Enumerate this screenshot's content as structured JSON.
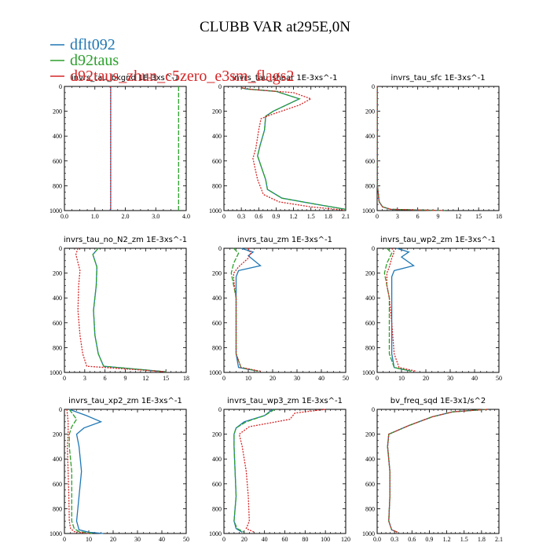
{
  "figure": {
    "title": "CLUBB VAR at295E,0N"
  },
  "legend": [
    {
      "label": "dflt092",
      "color": "#1f77b4"
    },
    {
      "label": "d92taus",
      "color": "#2ca02c"
    },
    {
      "label": "d92taus_zhun_c5zero_e3sm_flags2",
      "color": "#d62728"
    }
  ],
  "chart_data": [
    {
      "type": "line",
      "title": "invrs_tau_bkgnd   1E-3xs^-1",
      "xlim": [
        0,
        4
      ],
      "xticks": [
        "0.0",
        "1.0",
        "2.0",
        "3.0",
        "4.0"
      ],
      "ylim": [
        1000,
        0
      ],
      "yticks": [
        "0",
        "200",
        "400",
        "600",
        "800",
        "1000"
      ],
      "series": [
        {
          "name": "dflt092",
          "x": [
            1.52,
            1.52
          ],
          "y": [
            0,
            1000
          ]
        },
        {
          "name": "d92taus",
          "x": [
            3.75,
            3.75
          ],
          "y": [
            0,
            1000
          ]
        },
        {
          "name": "d92taus_zhun_c5zero_e3sm_flags2",
          "x": [
            1.52,
            1.52
          ],
          "y": [
            0,
            1000
          ]
        }
      ]
    },
    {
      "type": "line",
      "title": "invrs_tau_shear   1E-3xs^-1",
      "xlim": [
        0,
        2.1
      ],
      "xticks": [
        "0",
        "0.3",
        "0.6",
        "0.9",
        "1.2",
        "1.5",
        "1.8",
        "2.1"
      ],
      "ylim": [
        1000,
        0
      ],
      "yticks": [
        "0",
        "200",
        "400",
        "600",
        "800",
        "1000"
      ],
      "series": [
        {
          "name": "dflt092",
          "x": [
            0.3,
            0.38,
            0.9,
            1.3,
            0.85,
            0.72,
            0.7,
            0.62,
            0.58,
            0.72,
            0.75,
            1.0,
            1.6,
            2.1
          ],
          "y": [
            10,
            20,
            40,
            100,
            200,
            240,
            350,
            480,
            560,
            750,
            830,
            900,
            950,
            990
          ]
        },
        {
          "name": "d92taus",
          "x": [
            0.3,
            0.38,
            0.9,
            1.3,
            0.85,
            0.72,
            0.7,
            0.62,
            0.58,
            0.72,
            0.75,
            1.0,
            1.6,
            2.1
          ],
          "y": [
            10,
            20,
            40,
            100,
            200,
            240,
            350,
            480,
            560,
            750,
            830,
            900,
            950,
            990
          ]
        },
        {
          "name": "d92taus_zhun_c5zero_e3sm_flags2",
          "x": [
            0.3,
            0.5,
            1.2,
            1.5,
            1.3,
            0.8,
            0.64,
            0.6,
            0.55,
            0.5,
            0.58,
            0.68,
            0.95,
            1.5,
            2.05
          ],
          "y": [
            10,
            25,
            50,
            100,
            150,
            230,
            260,
            350,
            500,
            580,
            750,
            870,
            930,
            970,
            995
          ]
        }
      ]
    },
    {
      "type": "line",
      "title": "invrs_tau_sfc   1E-3xs^-1",
      "xlim": [
        0,
        18
      ],
      "xticks": [
        "0",
        "3",
        "6",
        "9",
        "12",
        "15",
        "18"
      ],
      "ylim": [
        1000,
        0
      ],
      "yticks": [
        "0",
        "200",
        "400",
        "600",
        "800",
        "1000"
      ],
      "series": [
        {
          "name": "dflt092",
          "x": [
            0.02,
            0.05,
            0.3,
            0.8,
            2.0,
            10.0
          ],
          "y": [
            0,
            800,
            930,
            970,
            990,
            1000
          ]
        },
        {
          "name": "d92taus",
          "x": [
            0.02,
            0.05,
            0.3,
            0.8,
            2.0,
            10.0
          ],
          "y": [
            0,
            800,
            930,
            970,
            990,
            1000
          ]
        },
        {
          "name": "d92taus_zhun_c5zero_e3sm_flags2",
          "x": [
            0.02,
            0.05,
            0.3,
            0.8,
            2.0,
            10.0
          ],
          "y": [
            0,
            800,
            930,
            970,
            990,
            1000
          ]
        }
      ]
    },
    {
      "type": "line",
      "title": "invrs_tau_no_N2_zm   1E-3xs^-1",
      "xlim": [
        0,
        18
      ],
      "xticks": [
        "0",
        "3",
        "6",
        "9",
        "12",
        "15",
        "18"
      ],
      "ylim": [
        1000,
        0
      ],
      "yticks": [
        "0",
        "200",
        "400",
        "600",
        "800",
        "1000"
      ],
      "series": [
        {
          "name": "dflt092",
          "x": [
            5.0,
            4.2,
            4.8,
            4.7,
            4.3,
            4.5,
            5.0,
            5.8,
            15.0
          ],
          "y": [
            0,
            50,
            150,
            300,
            500,
            700,
            850,
            950,
            995
          ]
        },
        {
          "name": "d92taus",
          "x": [
            5.0,
            4.2,
            4.8,
            4.7,
            4.3,
            4.5,
            5.0,
            5.8,
            15.0
          ],
          "y": [
            0,
            50,
            150,
            300,
            500,
            700,
            850,
            950,
            995
          ]
        },
        {
          "name": "d92taus_zhun_c5zero_e3sm_flags2",
          "x": [
            2.0,
            1.7,
            2.3,
            2.1,
            2.0,
            2.3,
            2.7,
            3.3,
            15.0
          ],
          "y": [
            0,
            50,
            180,
            300,
            500,
            700,
            850,
            950,
            995
          ]
        }
      ]
    },
    {
      "type": "line",
      "title": "invrs_tau_zm   1E-3xs^-1",
      "xlim": [
        0,
        50
      ],
      "xticks": [
        "0",
        "10",
        "20",
        "30",
        "40",
        "50"
      ],
      "ylim": [
        1000,
        0
      ],
      "yticks": [
        "0",
        "200",
        "400",
        "600",
        "800",
        "1000"
      ],
      "series": [
        {
          "name": "dflt092",
          "x": [
            7,
            12,
            10,
            15,
            6,
            5,
            5,
            5,
            5,
            6,
            14
          ],
          "y": [
            0,
            30,
            60,
            140,
            180,
            230,
            400,
            600,
            850,
            960,
            990
          ]
        },
        {
          "name": "d92taus",
          "x": [
            4,
            6,
            4,
            3,
            4,
            5,
            5,
            5,
            7,
            14
          ],
          "y": [
            0,
            40,
            120,
            200,
            300,
            400,
            600,
            850,
            960,
            990
          ]
        },
        {
          "name": "d92taus_zhun_c5zero_e3sm_flags2",
          "x": [
            10,
            11,
            10,
            6,
            4,
            4,
            5,
            5,
            5,
            7,
            15
          ],
          "y": [
            0,
            40,
            80,
            150,
            200,
            250,
            400,
            600,
            850,
            960,
            990
          ]
        }
      ]
    },
    {
      "type": "line",
      "title": "invrs_tau_wp2_zm   1E-3xs^-1",
      "xlim": [
        0,
        50
      ],
      "xticks": [
        "0",
        "10",
        "20",
        "30",
        "40",
        "50"
      ],
      "ylim": [
        1000,
        0
      ],
      "yticks": [
        "0",
        "200",
        "400",
        "600",
        "800",
        "1000"
      ],
      "series": [
        {
          "name": "dflt092",
          "x": [
            8,
            13,
            10,
            15,
            7,
            6,
            6,
            6,
            6,
            7,
            14
          ],
          "y": [
            0,
            30,
            70,
            140,
            180,
            230,
            400,
            600,
            850,
            960,
            990
          ]
        },
        {
          "name": "d92taus",
          "x": [
            4,
            6,
            4,
            3,
            4,
            5,
            5,
            5,
            7,
            14
          ],
          "y": [
            0,
            40,
            120,
            200,
            300,
            400,
            600,
            850,
            960,
            990
          ]
        },
        {
          "name": "d92taus_zhun_c5zero_e3sm_flags2",
          "x": [
            6,
            7,
            6,
            5,
            4,
            4,
            5,
            6,
            7,
            9,
            16
          ],
          "y": [
            0,
            30,
            80,
            150,
            200,
            300,
            400,
            600,
            850,
            960,
            990
          ]
        }
      ]
    },
    {
      "type": "line",
      "title": "invrs_tau_xp2_zm   1E-3xs^-1",
      "xlim": [
        0,
        50
      ],
      "xticks": [
        "0",
        "10",
        "20",
        "30",
        "40",
        "50"
      ],
      "ylim": [
        1000,
        0
      ],
      "yticks": [
        "0",
        "200",
        "400",
        "600",
        "800",
        "1000"
      ],
      "series": [
        {
          "name": "dflt092",
          "x": [
            2,
            9,
            15,
            8,
            5,
            6,
            7,
            6,
            5,
            6,
            10,
            16
          ],
          "y": [
            0,
            50,
            100,
            150,
            200,
            300,
            500,
            700,
            900,
            970,
            990,
            1000
          ]
        },
        {
          "name": "d92taus",
          "x": [
            2,
            5,
            3,
            2,
            2,
            3,
            3,
            3,
            4,
            6,
            12
          ],
          "y": [
            0,
            80,
            140,
            200,
            300,
            500,
            700,
            900,
            960,
            985,
            1000
          ]
        },
        {
          "name": "d92taus_zhun_c5zero_e3sm_flags2",
          "x": [
            1,
            1.5,
            1.5,
            1.2,
            1.5,
            1.8,
            2,
            2.5,
            4,
            10
          ],
          "y": [
            0,
            100,
            200,
            300,
            500,
            700,
            900,
            960,
            985,
            1000
          ]
        }
      ]
    },
    {
      "type": "line",
      "title": "invrs_tau_wp3_zm   1E-3xs^-1",
      "xlim": [
        0,
        120
      ],
      "xticks": [
        "0",
        "20",
        "40",
        "60",
        "80",
        "100",
        "120"
      ],
      "ylim": [
        1000,
        0
      ],
      "yticks": [
        "0",
        "200",
        "400",
        "600",
        "800",
        "1000"
      ],
      "series": [
        {
          "name": "dflt092",
          "x": [
            48,
            40,
            20,
            12,
            10,
            10,
            11,
            12,
            10,
            12,
            18
          ],
          "y": [
            0,
            50,
            100,
            150,
            200,
            300,
            500,
            700,
            900,
            960,
            990
          ]
        },
        {
          "name": "d92taus",
          "x": [
            50,
            40,
            22,
            12,
            10,
            10,
            11,
            12,
            10,
            13,
            20
          ],
          "y": [
            0,
            50,
            100,
            150,
            200,
            300,
            500,
            700,
            900,
            960,
            990
          ]
        },
        {
          "name": "d92taus_zhun_c5zero_e3sm_flags2",
          "x": [
            100,
            70,
            65,
            25,
            15,
            18,
            22,
            24,
            25,
            22,
            30
          ],
          "y": [
            0,
            30,
            80,
            140,
            200,
            300,
            500,
            700,
            900,
            960,
            990
          ]
        }
      ]
    },
    {
      "type": "line",
      "title": "bv_freq_sqd   1E-3x1/s^2",
      "xlim": [
        0,
        2.1
      ],
      "xticks": [
        "0.0",
        "0.3",
        "0.6",
        "0.9",
        "1.2",
        "1.5",
        "1.8",
        "2.1"
      ],
      "ylim": [
        1000,
        0
      ],
      "yticks": [
        "0",
        "200",
        "400",
        "600",
        "800",
        "1000"
      ],
      "series": [
        {
          "name": "dflt092",
          "x": [
            1.9,
            1.3,
            0.95,
            0.55,
            0.2,
            0.18,
            0.22,
            0.22,
            0.2,
            0.25,
            0.35
          ],
          "y": [
            0,
            20,
            60,
            130,
            200,
            300,
            500,
            700,
            900,
            970,
            990
          ]
        },
        {
          "name": "d92taus",
          "x": [
            1.9,
            1.3,
            0.95,
            0.55,
            0.2,
            0.18,
            0.22,
            0.22,
            0.2,
            0.25,
            0.35
          ],
          "y": [
            0,
            20,
            60,
            130,
            200,
            300,
            500,
            700,
            900,
            970,
            990
          ]
        },
        {
          "name": "d92taus_zhun_c5zero_e3sm_flags2",
          "x": [
            1.9,
            1.3,
            0.95,
            0.55,
            0.2,
            0.18,
            0.22,
            0.22,
            0.2,
            0.25,
            0.35
          ],
          "y": [
            0,
            20,
            60,
            130,
            200,
            300,
            500,
            700,
            900,
            970,
            990
          ]
        }
      ]
    }
  ]
}
